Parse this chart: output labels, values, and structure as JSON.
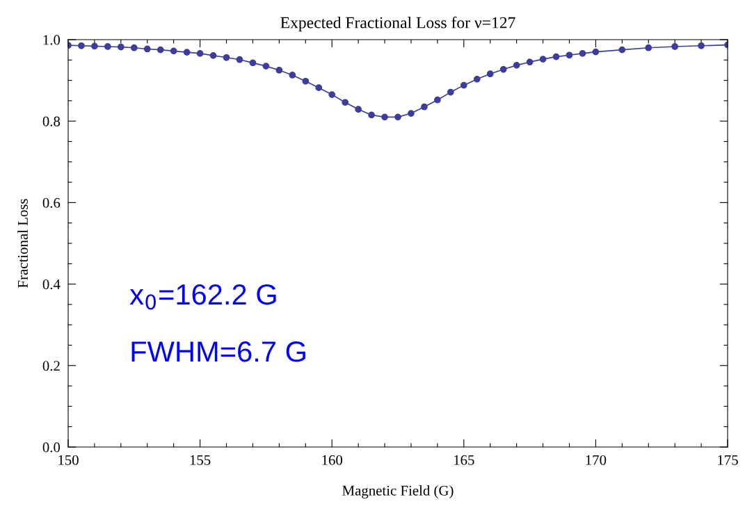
{
  "chart_data": {
    "type": "line",
    "title": "Expected Fractional Loss for ν=127",
    "xlabel": "Magnetic Field (G)",
    "ylabel": "Fractional Loss",
    "x": [
      150,
      150.5,
      151,
      151.5,
      152,
      152.5,
      153,
      153.5,
      154,
      154.5,
      155,
      155.5,
      156,
      156.5,
      157,
      157.5,
      158,
      158.5,
      159,
      159.5,
      160,
      160.5,
      161,
      161.5,
      162,
      162.5,
      163,
      163.5,
      164,
      164.5,
      165,
      165.5,
      166,
      166.5,
      167,
      167.5,
      168,
      168.5,
      169,
      169.5,
      170,
      171,
      172,
      173,
      174,
      175
    ],
    "series": [
      {
        "color": "#3d3d9a",
        "values": [
          0.986,
          0.985,
          0.984,
          0.983,
          0.982,
          0.98,
          0.977,
          0.975,
          0.972,
          0.969,
          0.966,
          0.961,
          0.956,
          0.951,
          0.943,
          0.935,
          0.925,
          0.913,
          0.898,
          0.882,
          0.865,
          0.846,
          0.829,
          0.815,
          0.81,
          0.81,
          0.819,
          0.835,
          0.852,
          0.871,
          0.888,
          0.903,
          0.916,
          0.927,
          0.937,
          0.945,
          0.952,
          0.958,
          0.962,
          0.966,
          0.97,
          0.975,
          0.98,
          0.983,
          0.985,
          0.987
        ]
      }
    ],
    "xlim": [
      150,
      175
    ],
    "ylim": [
      0,
      1
    ],
    "xticks": [
      150,
      {
        "value": 151,
        "label": null
      },
      {
        "value": 152,
        "label": null
      },
      {
        "value": 153,
        "label": null
      },
      {
        "value": 154,
        "label": null
      },
      155,
      {
        "value": 156,
        "label": null
      },
      {
        "value": 157,
        "label": null
      },
      {
        "value": 158,
        "label": null
      },
      {
        "value": 159,
        "label": null
      },
      160,
      {
        "value": 161,
        "label": null
      },
      {
        "value": 162,
        "label": null
      },
      {
        "value": 163,
        "label": null
      },
      {
        "value": 164,
        "label": null
      },
      165,
      {
        "value": 166,
        "label": null
      },
      {
        "value": 167,
        "label": null
      },
      {
        "value": 168,
        "label": null
      },
      {
        "value": 169,
        "label": null
      },
      170,
      {
        "value": 171,
        "label": null
      },
      {
        "value": 172,
        "label": null
      },
      {
        "value": 173,
        "label": null
      },
      {
        "value": 174,
        "label": null
      },
      175
    ],
    "yticks": [
      {
        "value": 0,
        "label": "0.0"
      },
      {
        "value": 0.05,
        "label": null
      },
      {
        "value": 0.1,
        "label": null
      },
      {
        "value": 0.15,
        "label": null
      },
      0.2,
      {
        "value": 0.25,
        "label": null
      },
      {
        "value": 0.3,
        "label": null
      },
      {
        "value": 0.35,
        "label": null
      },
      0.4,
      {
        "value": 0.45,
        "label": null
      },
      {
        "value": 0.5,
        "label": null
      },
      {
        "value": 0.55,
        "label": null
      },
      0.6,
      {
        "value": 0.65,
        "label": null
      },
      {
        "value": 0.7,
        "label": null
      },
      {
        "value": 0.75,
        "label": null
      },
      0.8,
      {
        "value": 0.85,
        "label": null
      },
      {
        "value": 0.9,
        "label": null
      },
      {
        "value": 0.95,
        "label": null
      },
      {
        "value": 1,
        "label": "1.0"
      }
    ],
    "annotations": [
      "x$_{0}$=162.2 G",
      "FWHM=6.7 G"
    ],
    "marker": "circle",
    "line_style": "solid",
    "grid": false,
    "legend": false
  }
}
